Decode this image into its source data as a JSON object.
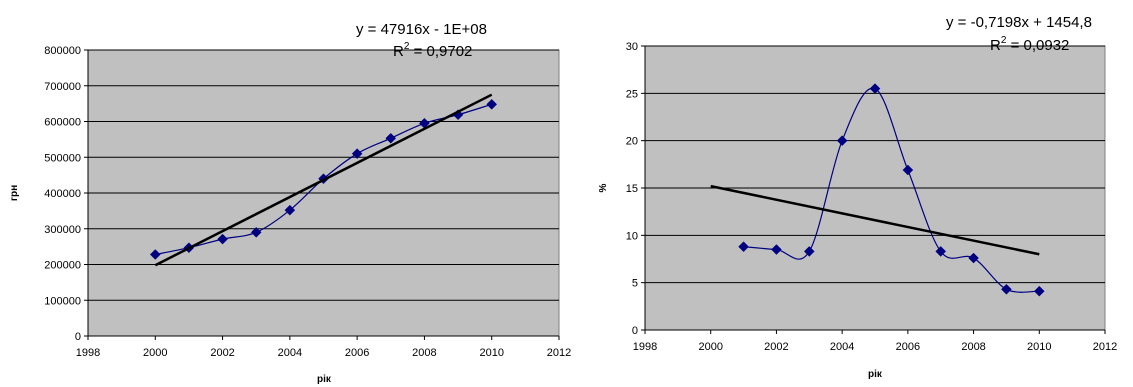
{
  "chart_data": [
    {
      "type": "scatter",
      "xlabel": "рік",
      "ylabel": "грн",
      "xlim": [
        1998,
        2012
      ],
      "ylim": [
        0,
        800000
      ],
      "xticks": [
        "1998",
        "2000",
        "2002",
        "2004",
        "2006",
        "2008",
        "2010",
        "2012"
      ],
      "yticks": [
        "0",
        "100000",
        "200000",
        "300000",
        "400000",
        "500000",
        "600000",
        "700000",
        "800000"
      ],
      "grid": true,
      "series": [
        {
          "x": [
            2000,
            2001,
            2002,
            2003,
            2004,
            2005,
            2006,
            2007,
            2008,
            2009,
            2010
          ],
          "y": [
            228000,
            247000,
            271000,
            290000,
            352000,
            440000,
            510000,
            553000,
            595000,
            619000,
            648000
          ],
          "color": "#000080",
          "smooth": true
        }
      ],
      "trendline": {
        "x": [
          2000,
          2010
        ],
        "y": [
          198000,
          675000
        ],
        "color": "#000000"
      },
      "equation": "y = 47916x - 1E+08",
      "r2_prefix": "R",
      "r2_sup": "2",
      "r2_value": " = 0,9702"
    },
    {
      "type": "scatter",
      "xlabel": "рік",
      "ylabel": "%",
      "xlim": [
        1998,
        2012
      ],
      "ylim": [
        0,
        30
      ],
      "xticks": [
        "1998",
        "2000",
        "2002",
        "2004",
        "2006",
        "2008",
        "2010",
        "2012"
      ],
      "yticks": [
        "0",
        "5",
        "10",
        "15",
        "20",
        "25",
        "30"
      ],
      "grid": true,
      "series": [
        {
          "x": [
            2001,
            2002,
            2003,
            2004,
            2005,
            2006,
            2007,
            2008,
            2009,
            2010
          ],
          "y": [
            8.8,
            8.5,
            8.3,
            20.0,
            25.5,
            16.9,
            8.3,
            7.6,
            4.3,
            4.1
          ],
          "color": "#000080",
          "smooth": true
        }
      ],
      "trendline": {
        "x": [
          2000,
          2010
        ],
        "y": [
          15.2,
          8.0
        ],
        "color": "#000000"
      },
      "equation": "y = -0,7198x + 1454,8",
      "r2_prefix": "R",
      "r2_sup": "2",
      "r2_value": " = 0,0932"
    }
  ]
}
